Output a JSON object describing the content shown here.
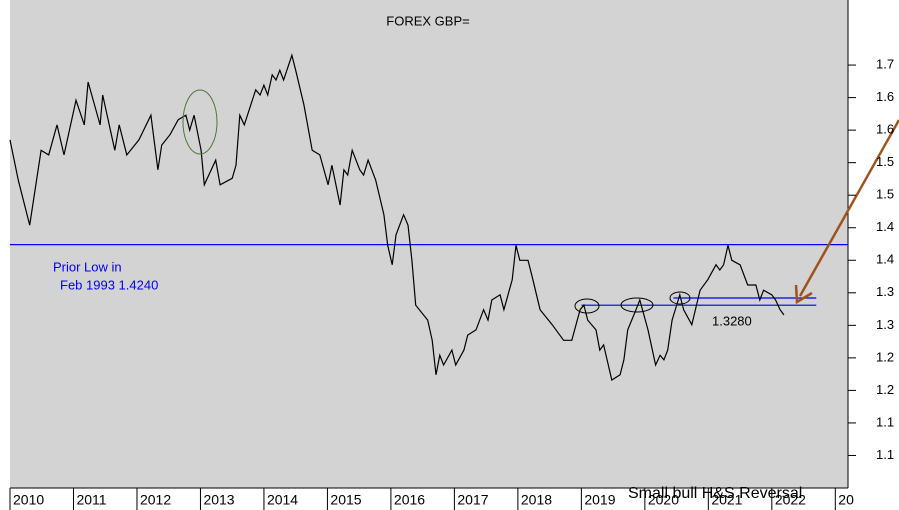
{
  "chart_data": {
    "type": "line",
    "title": "FOREX GBP=",
    "color": "#000000",
    "x": [
      2010.0,
      2010.13,
      2010.31,
      2010.49,
      2010.61,
      2010.74,
      2010.85,
      2011.04,
      2011.17,
      2011.23,
      2011.42,
      2011.46,
      2011.65,
      2011.72,
      2011.84,
      2012.03,
      2012.22,
      2012.33,
      2012.39,
      2012.52,
      2012.65,
      2012.77,
      2012.83,
      2012.9,
      2013.01,
      2013.06,
      2013.24,
      2013.31,
      2013.5,
      2013.56,
      2013.62,
      2013.69,
      2013.87,
      2013.94,
      2014.0,
      2014.06,
      2014.13,
      2014.19,
      2014.25,
      2014.31,
      2014.44,
      2014.5,
      2014.63,
      2014.76,
      2014.88,
      2015.01,
      2015.07,
      2015.2,
      2015.26,
      2015.32,
      2015.39,
      2015.51,
      2015.57,
      2015.64,
      2015.76,
      2015.89,
      2015.95,
      2016.02,
      2016.08,
      2016.2,
      2016.27,
      2016.33,
      2016.39,
      2016.58,
      2016.65,
      2016.71,
      2016.77,
      2016.83,
      2016.96,
      2017.02,
      2017.15,
      2017.21,
      2017.34,
      2017.46,
      2017.53,
      2017.59,
      2017.72,
      2017.78,
      2017.91,
      2017.97,
      2018.03,
      2018.16,
      2018.22,
      2018.35,
      2018.54,
      2018.72,
      2018.85,
      2018.98,
      2019.04,
      2019.1,
      2019.23,
      2019.29,
      2019.35,
      2019.48,
      2019.61,
      2019.67,
      2019.73,
      2019.86,
      2019.92,
      2020.05,
      2020.17,
      2020.24,
      2020.3,
      2020.36,
      2020.43,
      2020.55,
      2020.61,
      2020.74,
      2020.87,
      2020.99,
      2021.12,
      2021.18,
      2021.24,
      2021.31,
      2021.37,
      2021.5,
      2021.62,
      2021.75,
      2021.81,
      2021.87,
      2022.0,
      2022.06,
      2022.13,
      2022.19
    ],
    "values": [
      1.585,
      1.523,
      1.454,
      1.569,
      1.562,
      1.608,
      1.562,
      1.646,
      1.608,
      1.674,
      1.608,
      1.654,
      1.569,
      1.608,
      1.562,
      1.585,
      1.623,
      1.539,
      1.577,
      1.593,
      1.616,
      1.623,
      1.6,
      1.623,
      1.569,
      1.516,
      1.554,
      1.516,
      1.526,
      1.546,
      1.623,
      1.608,
      1.662,
      1.654,
      1.669,
      1.654,
      1.685,
      1.677,
      1.692,
      1.677,
      1.715,
      1.692,
      1.639,
      1.569,
      1.562,
      1.516,
      1.546,
      1.485,
      1.539,
      1.531,
      1.569,
      1.539,
      1.531,
      1.554,
      1.523,
      1.47,
      1.423,
      1.393,
      1.439,
      1.47,
      1.454,
      1.4,
      1.331,
      1.308,
      1.277,
      1.224,
      1.254,
      1.239,
      1.262,
      1.239,
      1.262,
      1.285,
      1.293,
      1.324,
      1.308,
      1.339,
      1.347,
      1.324,
      1.37,
      1.423,
      1.4,
      1.4,
      1.377,
      1.324,
      1.301,
      1.277,
      1.277,
      1.324,
      1.331,
      1.308,
      1.293,
      1.262,
      1.27,
      1.216,
      1.224,
      1.247,
      1.293,
      1.324,
      1.339,
      1.293,
      1.239,
      1.254,
      1.247,
      1.262,
      1.308,
      1.347,
      1.324,
      1.301,
      1.354,
      1.37,
      1.393,
      1.385,
      1.393,
      1.423,
      1.4,
      1.393,
      1.362,
      1.362,
      1.339,
      1.354,
      1.347,
      1.339,
      1.324,
      1.316
    ],
    "xlim": [
      2010,
      2023.2
    ],
    "xticks": [
      2010,
      2011,
      2012,
      2013,
      2014,
      2015,
      2016,
      2017,
      2018,
      2019,
      2020,
      2021,
      2022,
      {
        "value": 2023,
        "label": "20"
      }
    ],
    "ylim": [
      1.05,
      1.8
    ],
    "yticks": [
      {
        "value": 1.7,
        "label": "1.7"
      },
      {
        "value": 1.65,
        "label": "1.6"
      },
      {
        "value": 1.6,
        "label": "1.6"
      },
      {
        "value": 1.55,
        "label": "1.5"
      },
      {
        "value": 1.5,
        "label": "1.5"
      },
      {
        "value": 1.45,
        "label": "1.4"
      },
      {
        "value": 1.4,
        "label": "1.4"
      },
      {
        "value": 1.35,
        "label": "1.3"
      },
      {
        "value": 1.3,
        "label": "1.3"
      },
      {
        "value": 1.25,
        "label": "1.2"
      },
      {
        "value": 1.2,
        "label": "1.2"
      },
      {
        "value": 1.15,
        "label": "1.1"
      },
      {
        "value": 1.1,
        "label": "1.1"
      }
    ],
    "hlines": [
      {
        "value": 1.424,
        "color": "#0000ee"
      },
      {
        "value": 1.331,
        "x": [
          2019.0,
          2022.7
        ],
        "color": "#0000ee"
      },
      {
        "value": 1.342,
        "x": [
          2020.45,
          2022.7
        ],
        "color": "#0000ee"
      }
    ],
    "annotations": [
      "Prior Low in",
      "Feb 1993 1.4240",
      "1.3280",
      "Small bull H&S Reversal"
    ]
  }
}
